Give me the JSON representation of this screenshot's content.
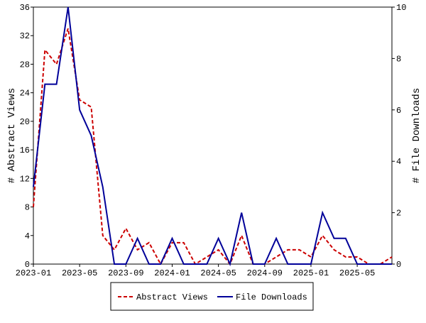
{
  "chart_data": {
    "type": "line",
    "x": [
      "2023-01",
      "2023-02",
      "2023-03",
      "2023-04",
      "2023-05",
      "2023-06",
      "2023-07",
      "2023-08",
      "2023-09",
      "2023-10",
      "2023-11",
      "2023-12",
      "2024-01",
      "2024-02",
      "2024-03",
      "2024-04",
      "2024-05",
      "2024-06",
      "2024-07",
      "2024-08",
      "2024-09",
      "2024-10",
      "2024-11",
      "2024-12",
      "2025-01",
      "2025-02",
      "2025-03",
      "2025-04",
      "2025-05",
      "2025-06",
      "2025-07",
      "2025-08"
    ],
    "xticks": [
      "2023-01",
      "2023-05",
      "2023-09",
      "2024-01",
      "2024-05",
      "2024-09",
      "2025-01",
      "2025-05"
    ],
    "ylabel": "# Abstract Views",
    "y2label": "# File Downloads",
    "ylim": [
      0,
      36
    ],
    "yticks": [
      0,
      4,
      8,
      12,
      16,
      20,
      24,
      28,
      32,
      36
    ],
    "y2lim": [
      0,
      10
    ],
    "y2ticks": [
      0,
      2,
      4,
      6,
      8,
      10
    ],
    "series": [
      {
        "name": "Abstract Views",
        "color": "#cc0000",
        "dash": true,
        "values": [
          8,
          30,
          28,
          33,
          23,
          22,
          4,
          2,
          5,
          2,
          3,
          0,
          3,
          3,
          0,
          1,
          2,
          0,
          4,
          0,
          0,
          1,
          2,
          2,
          1,
          4,
          2,
          1,
          1,
          0,
          0,
          1
        ]
      },
      {
        "name": "File Downloads",
        "color": "#000099",
        "axis": "y2",
        "values": [
          3,
          7,
          7,
          10,
          6,
          5,
          3,
          0,
          0,
          1,
          0,
          0,
          1,
          0,
          0,
          0,
          1,
          0,
          2,
          0,
          0,
          1,
          0,
          0,
          0,
          2,
          1,
          1,
          0,
          0,
          0,
          0
        ]
      }
    ]
  }
}
